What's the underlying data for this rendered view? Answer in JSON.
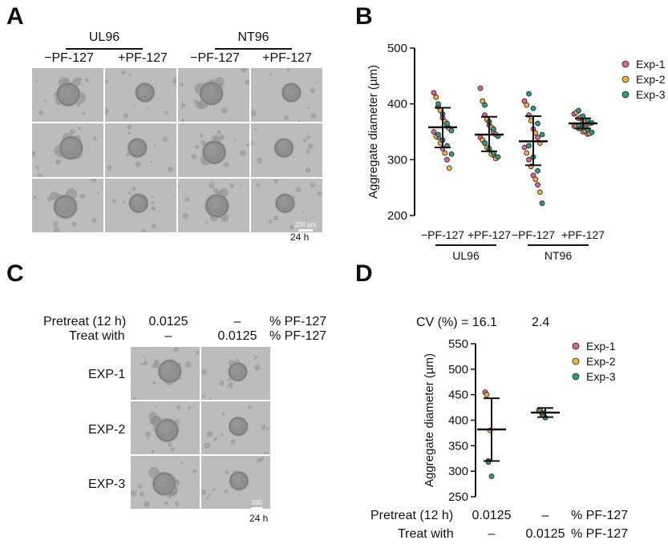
{
  "panels": {
    "a": "A",
    "b": "B",
    "c": "C",
    "d": "D"
  },
  "panel_a": {
    "groups": [
      "UL96",
      "NT96"
    ],
    "columns": [
      "−PF-127",
      "+PF-127",
      "−PF-127",
      "+PF-127"
    ],
    "scale_label": "200 µm",
    "time_label": "24 h"
  },
  "panel_c": {
    "row_labels": [
      "Pretreat (12 h)",
      "Treat with"
    ],
    "col1_values": [
      "0.0125",
      "–"
    ],
    "col2_values": [
      "–",
      "0.0125"
    ],
    "units": [
      "% PF-127",
      "% PF-127"
    ],
    "exp_labels": [
      "EXP-1",
      "EXP-2",
      "EXP-3"
    ],
    "scale_label": "200 µm",
    "time_label": "24 h"
  },
  "panel_d": {
    "cv_label": "CV (%) = 16.1",
    "cv_value_2": "2.4",
    "row_labels": [
      "Pretreat (12 h)",
      "Treat with"
    ],
    "col1_values": [
      "0.0125",
      "–"
    ],
    "col2_values": [
      "–",
      "0.0125"
    ],
    "units": [
      "% PF-127",
      "% PF-127"
    ]
  },
  "colors": {
    "exp1": "#e0609a",
    "exp2": "#f0b23c",
    "exp3": "#2f9a80"
  },
  "chart_data": [
    {
      "type": "scatter",
      "ylabel": "Aggregate diameter (µm)",
      "ylim": [
        200,
        500
      ],
      "yticks": [
        200,
        300,
        400,
        500
      ],
      "categories": [
        "−PF-127",
        "+PF-127",
        "−PF-127",
        "+PF-127"
      ],
      "groups": [
        "UL96",
        "NT96"
      ],
      "legend": [
        "Exp-1",
        "Exp-2",
        "Exp-3"
      ],
      "legend_position": "top-right",
      "summary": [
        {
          "mean": 358,
          "sd_low": 322,
          "sd_high": 393
        },
        {
          "mean": 345,
          "sd_low": 315,
          "sd_high": 377
        },
        {
          "mean": 333,
          "sd_low": 290,
          "sd_high": 378
        },
        {
          "mean": 365,
          "sd_low": 356,
          "sd_high": 374
        }
      ],
      "series": [
        {
          "name": "Exp-1",
          "values": [
            [
              420,
              395,
              375,
              360,
              350,
              340,
              320,
              300
            ],
            [
              428,
              380,
              362,
              350,
              340,
              330,
              318,
              308
            ],
            [
              405,
              380,
              355,
              340,
              322,
              300,
              272,
              255
            ],
            [
              382,
              374,
              368,
              364,
              360,
              356,
              350,
              346
            ]
          ]
        },
        {
          "name": "Exp-2",
          "values": [
            [
              412,
              388,
              368,
              356,
              342,
              330,
              312,
              285
            ],
            [
              405,
              372,
              358,
              345,
              335,
              322,
              310,
              302
            ],
            [
              398,
              370,
              348,
              330,
              312,
              288,
              265,
              242
            ],
            [
              385,
              376,
              370,
              365,
              361,
              357,
              352,
              347
            ]
          ]
        },
        {
          "name": "Exp-3",
          "values": [
            [
              400,
              382,
              365,
              352,
              345,
              335,
              325,
              310
            ],
            [
              398,
              368,
              355,
              342,
              330,
              320,
              312,
              305
            ],
            [
              418,
              392,
              365,
              345,
              325,
              305,
              280,
              222
            ],
            [
              388,
              378,
              371,
              366,
              362,
              358,
              354,
              349
            ]
          ]
        }
      ]
    },
    {
      "type": "scatter",
      "ylabel": "Aggregate diameter (µm)",
      "ylim": [
        250,
        550
      ],
      "yticks": [
        250,
        300,
        350,
        400,
        450,
        500,
        550
      ],
      "legend": [
        "Exp-1",
        "Exp-2",
        "Exp-3"
      ],
      "legend_position": "top-right",
      "summary": [
        {
          "mean": 382,
          "sd_low": 320,
          "sd_high": 443
        },
        {
          "mean": 415,
          "sd_low": 406,
          "sd_high": 424
        }
      ],
      "series": [
        {
          "name": "Exp-1",
          "values": [
            [
              455,
              320
            ],
            [
              420,
              412
            ]
          ]
        },
        {
          "name": "Exp-2",
          "values": [
            [
              450,
              380
            ],
            [
              418,
              410
            ]
          ]
        },
        {
          "name": "Exp-3",
          "values": [
            [
              318,
              290
            ],
            [
              415,
              405
            ]
          ]
        }
      ]
    }
  ]
}
